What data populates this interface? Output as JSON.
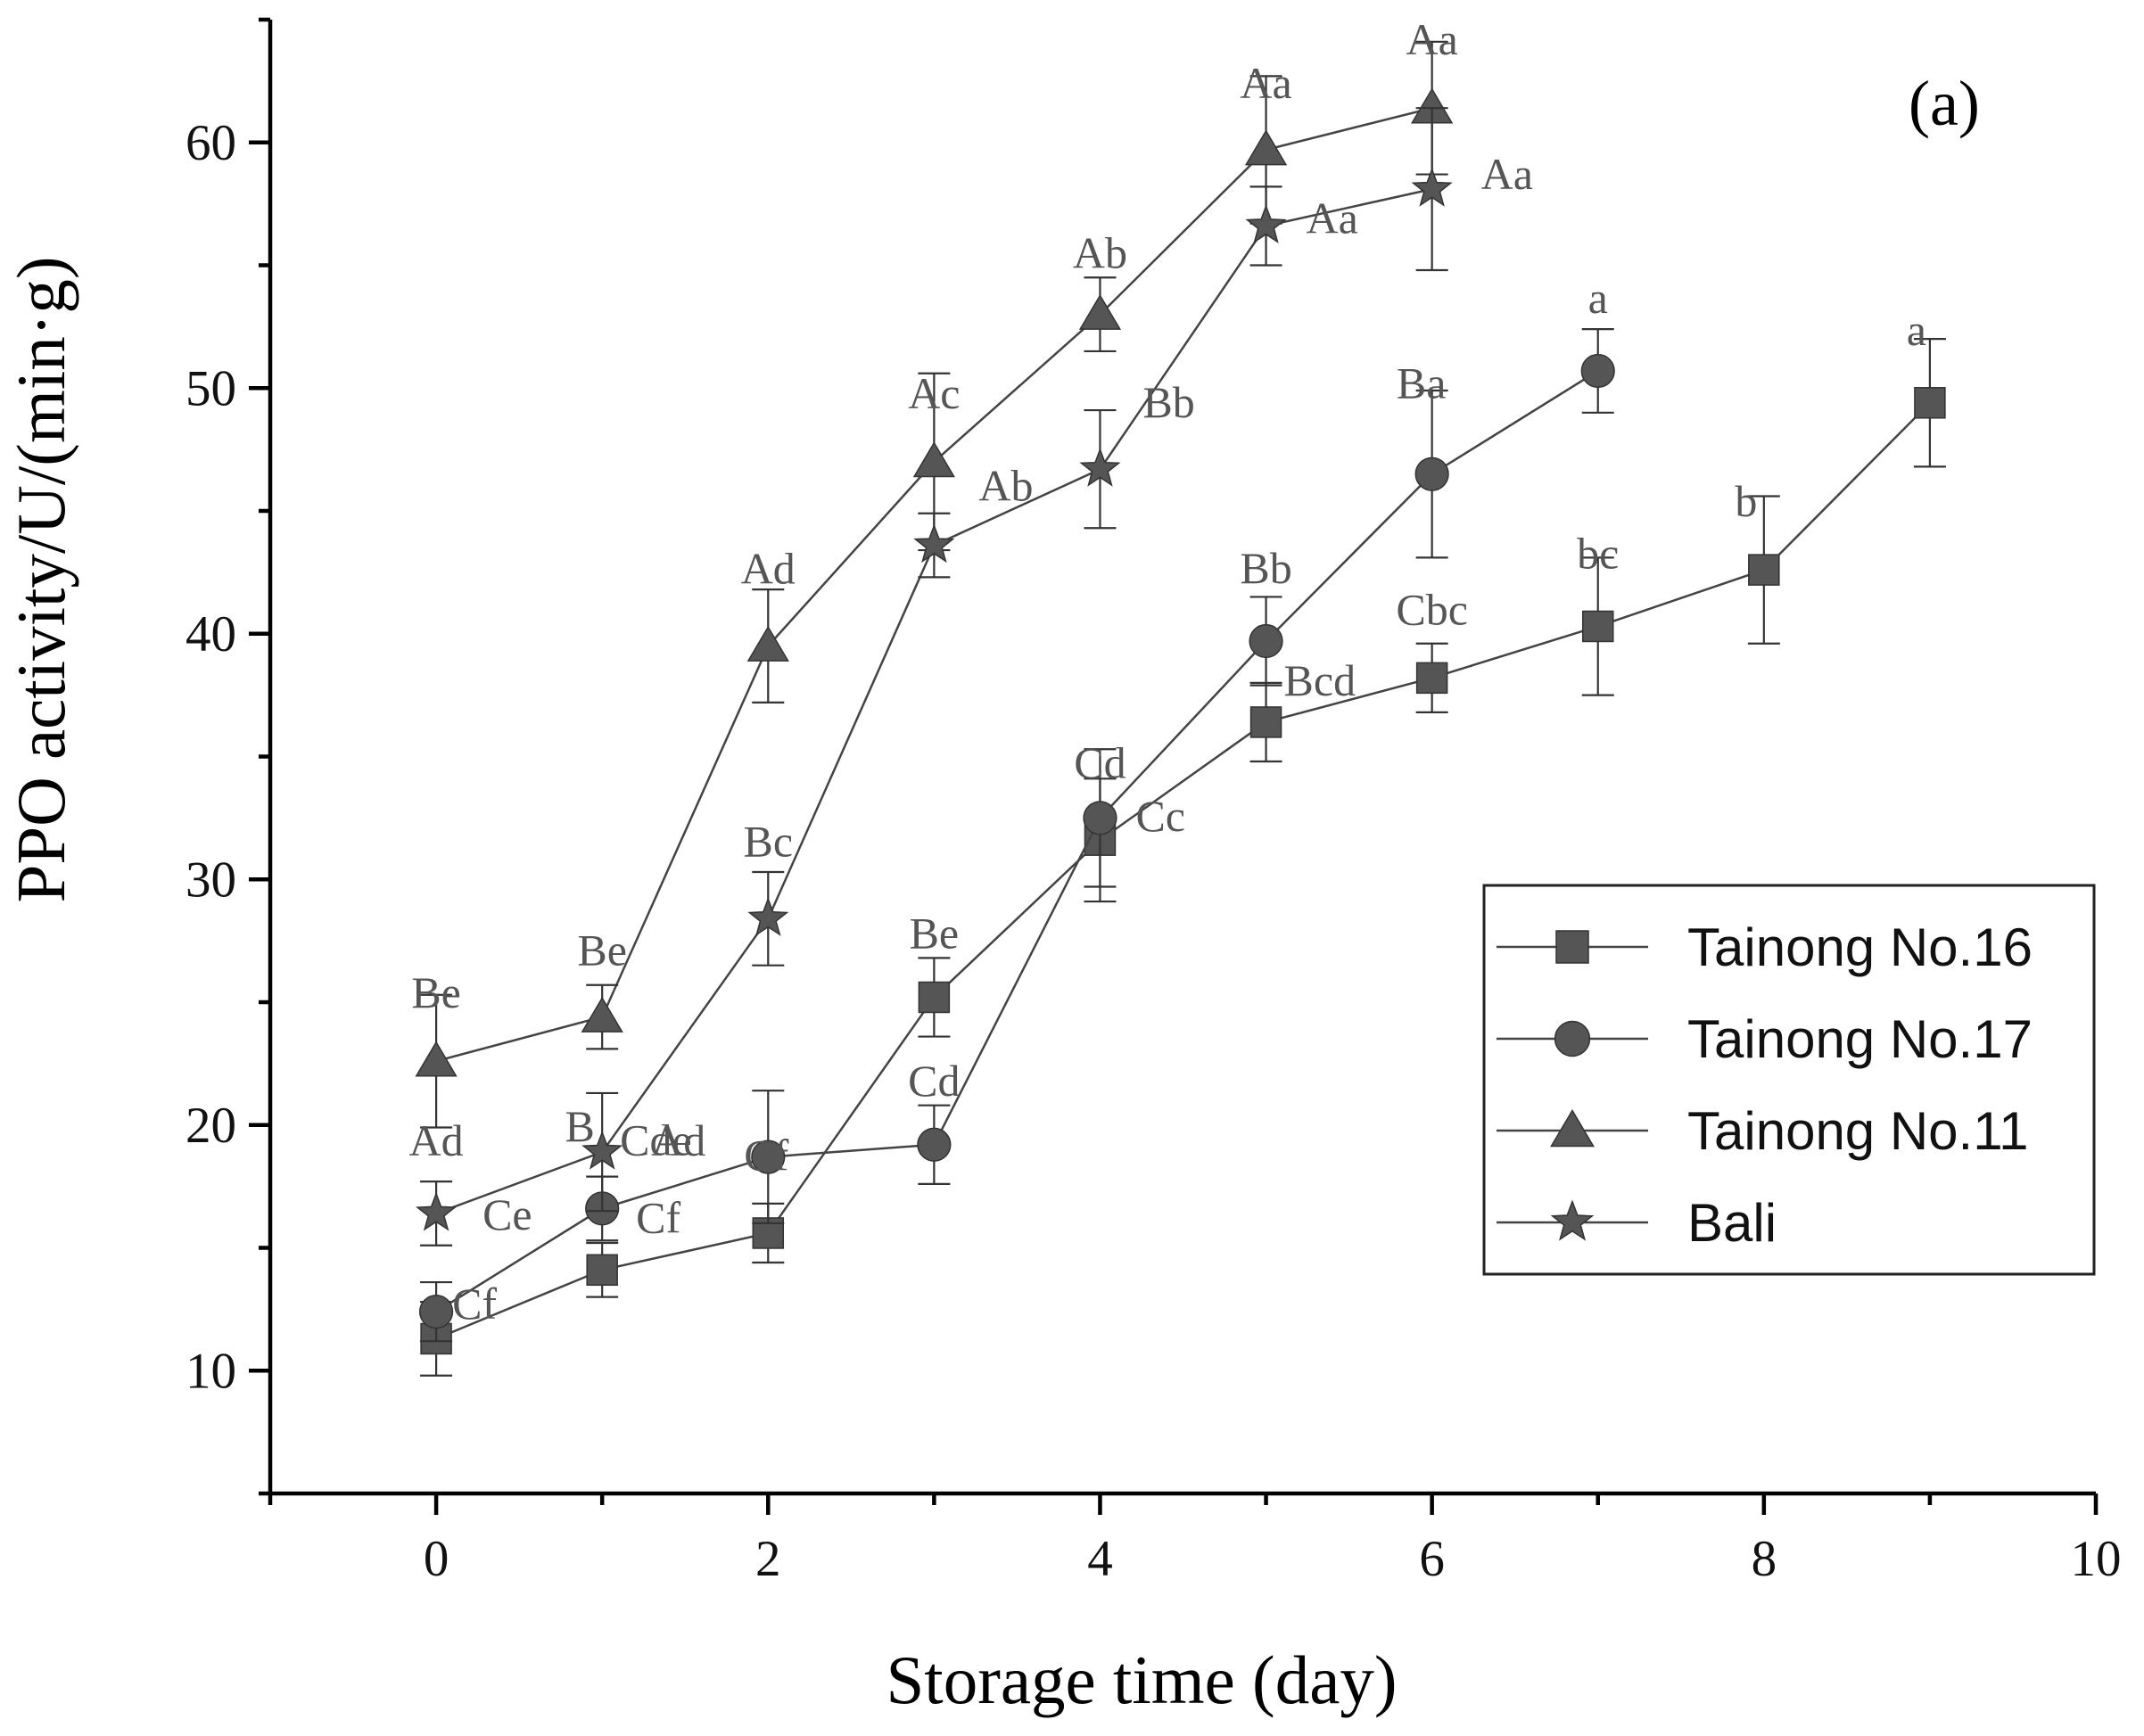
{
  "chart_data": {
    "type": "line",
    "panel_label": "(a)",
    "xlabel": "Storage time (day)",
    "ylabel": "PPO activity/U/(min·g)",
    "xlim": [
      -1,
      10
    ],
    "ylim": [
      5,
      65
    ],
    "xticks": [
      0,
      2,
      4,
      6,
      8,
      10
    ],
    "yticks": [
      10,
      20,
      30,
      40,
      50,
      60
    ],
    "x_minor_ticks": [
      -1,
      1,
      3,
      5,
      7,
      9
    ],
    "y_minor_ticks": [
      5,
      15,
      25,
      35,
      45,
      55,
      65
    ],
    "legend_position": "right-middle",
    "colors": {
      "line": "#444444",
      "marker": "#555555",
      "text": "#555555"
    },
    "series": [
      {
        "name": "Tainong No.16",
        "marker": "square",
        "x": [
          0,
          1,
          2,
          3,
          4,
          5,
          6,
          7,
          8,
          9
        ],
        "y": [
          11.3,
          14.1,
          15.6,
          25.2,
          31.6,
          36.4,
          38.2,
          40.3,
          42.6,
          49.4
        ],
        "err": [
          1.5,
          1.1,
          1.2,
          1.6,
          2.5,
          1.6,
          1.4,
          2.8,
          3.0,
          2.6
        ],
        "labels": [
          "",
          "Cf",
          "",
          "Be",
          "Cc",
          "Bcd",
          "Cbc",
          "bc",
          "b",
          "a"
        ]
      },
      {
        "name": "Tainong No.17",
        "marker": "circle",
        "x": [
          0,
          1,
          2,
          3,
          4,
          5,
          6,
          7
        ],
        "y": [
          12.4,
          16.6,
          18.7,
          19.2,
          32.5,
          39.7,
          46.5,
          50.7
        ],
        "err": [
          1.2,
          1.3,
          2.7,
          1.6,
          2.8,
          1.8,
          3.4,
          1.7
        ],
        "labels": [
          "Cf",
          "Cde",
          "Cf",
          "Cd",
          "Cd",
          "Bb",
          "Ba",
          "a"
        ]
      },
      {
        "name": "Tainong No.11",
        "marker": "triangle",
        "x": [
          0,
          1,
          2,
          3,
          4,
          5,
          6
        ],
        "y": [
          22.6,
          24.4,
          39.5,
          47.0,
          53.0,
          59.7,
          61.4
        ],
        "err": [
          2.7,
          1.3,
          2.3,
          3.6,
          1.5,
          3.0,
          2.7
        ],
        "labels": [
          "Be",
          "Be",
          "Ad",
          "Ac",
          "Ab",
          "Aa",
          "Aa"
        ]
      },
      {
        "name": "Bali",
        "marker": "star",
        "x": [
          0,
          1,
          2,
          3,
          4,
          5,
          6
        ],
        "y": [
          16.4,
          18.9,
          28.4,
          43.6,
          46.7,
          56.6,
          58.1
        ],
        "err": [
          1.3,
          2.4,
          1.9,
          1.3,
          2.4,
          1.6,
          3.3
        ],
        "labels": [
          "Ce",
          "Ad",
          "Bc",
          "Ab",
          "Bb",
          "Aa",
          "Aa"
        ]
      }
    ],
    "extra_annotations": [
      {
        "text": "Ad",
        "x": 0,
        "y": 16.4
      },
      {
        "text": "B",
        "x": 1,
        "y": 18.9
      }
    ]
  }
}
